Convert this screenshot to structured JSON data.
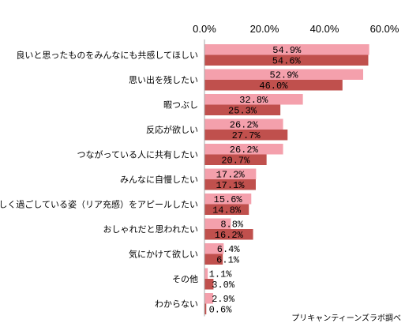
{
  "chart_data": {
    "type": "bar",
    "orientation": "horizontal",
    "categories": [
      "良いと思ったものをみんなにも共感してほしい",
      "思い出を残したい",
      "暇つぶし",
      "反応が欲しい",
      "つながっている人に共有したい",
      "みんなに自慢したい",
      "楽しく過ごしている姿（リア充感）をアピールしたい",
      "おしゃれだと思われたい",
      "気にかけて欲しい",
      "その他",
      "わからない"
    ],
    "series": [
      {
        "color": "#f4a0ac",
        "values": [
          54.9,
          52.9,
          32.8,
          26.2,
          26.2,
          17.2,
          15.6,
          8.8,
          6.4,
          1.1,
          2.9
        ],
        "labels": [
          "54.9%",
          "52.9%",
          "32.8%",
          "26.2%",
          "26.2%",
          "17.2%",
          "15.6%",
          "8.8%",
          "6.4%",
          "1.1%",
          "2.9%"
        ]
      },
      {
        "color": "#c0504d",
        "values": [
          54.6,
          46.0,
          25.3,
          27.7,
          20.7,
          17.1,
          14.8,
          16.2,
          6.1,
          3.0,
          0.6
        ],
        "labels": [
          "54.6%",
          "46.0%",
          "25.3%",
          "27.7%",
          "20.7%",
          "17.1%",
          "14.8%",
          "16.2%",
          "6.1%",
          "3.0%",
          "0.6%"
        ]
      }
    ],
    "xlim": [
      0,
      60
    ],
    "xticks": [
      "0.0%",
      "20.0%",
      "40.0%",
      "60.0%"
    ],
    "xtick_values": [
      0,
      20,
      40,
      60
    ],
    "axis_position": "top",
    "grid": false,
    "legend": "none"
  },
  "credit": "プリキャンティーンズラボ調べ"
}
